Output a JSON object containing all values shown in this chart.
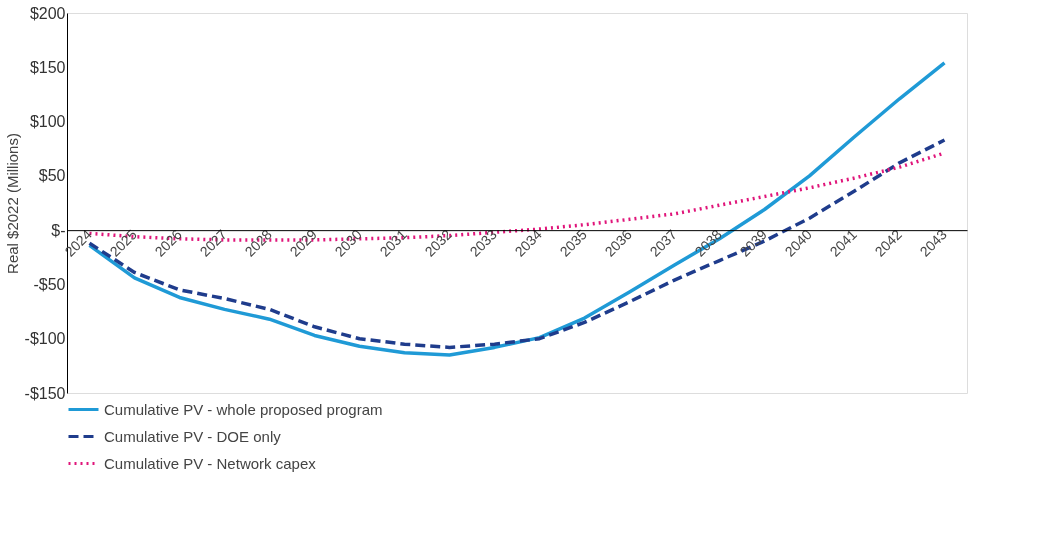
{
  "chart_data": {
    "type": "line",
    "ylabel": "Real $2022 (Millions)",
    "categories": [
      "2024",
      "2025",
      "2026",
      "2027",
      "2028",
      "2029",
      "2030",
      "2031",
      "2032",
      "2033",
      "2034",
      "2035",
      "2036",
      "2037",
      "2038",
      "2039",
      "2040",
      "2041",
      "2042",
      "2043"
    ],
    "series": [
      {
        "name": "Cumulative PV - whole proposed program",
        "color": "#1f9ad6",
        "line_style": "solid",
        "values": [
          -14,
          -44,
          -62,
          -73,
          -82,
          -97,
          -107,
          -113,
          -115,
          -108,
          -99,
          -81,
          -57,
          -32,
          -8,
          19,
          50,
          86,
          121,
          154
        ]
      },
      {
        "name": "Cumulative PV - DOE only",
        "color": "#1f3c8c",
        "line_style": "dashed",
        "values": [
          -12,
          -39,
          -55,
          -63,
          -73,
          -89,
          -100,
          -105,
          -108,
          -105,
          -100,
          -85,
          -66,
          -46,
          -28,
          -10,
          11,
          36,
          62,
          83
        ]
      },
      {
        "name": "Cumulative PV - Network capex",
        "color": "#e0157a",
        "line_style": "dotted",
        "values": [
          -3,
          -6,
          -8,
          -9,
          -9,
          -9,
          -8,
          -7,
          -5,
          -2,
          1,
          5,
          10,
          15,
          23,
          31,
          39,
          48,
          58,
          71
        ]
      }
    ],
    "ylim": [
      -150,
      200
    ],
    "yticks": [
      {
        "value": -150,
        "label": "-$150"
      },
      {
        "value": -100,
        "label": "-$100"
      },
      {
        "value": -50,
        "label": "-$50"
      },
      {
        "value": 0,
        "label": "$-"
      },
      {
        "value": 50,
        "label": "$50"
      },
      {
        "value": 100,
        "label": "$100"
      },
      {
        "value": 150,
        "label": "$150"
      },
      {
        "value": 200,
        "label": "$200"
      }
    ],
    "grid": false,
    "legend": "bottom",
    "marker": "none"
  }
}
